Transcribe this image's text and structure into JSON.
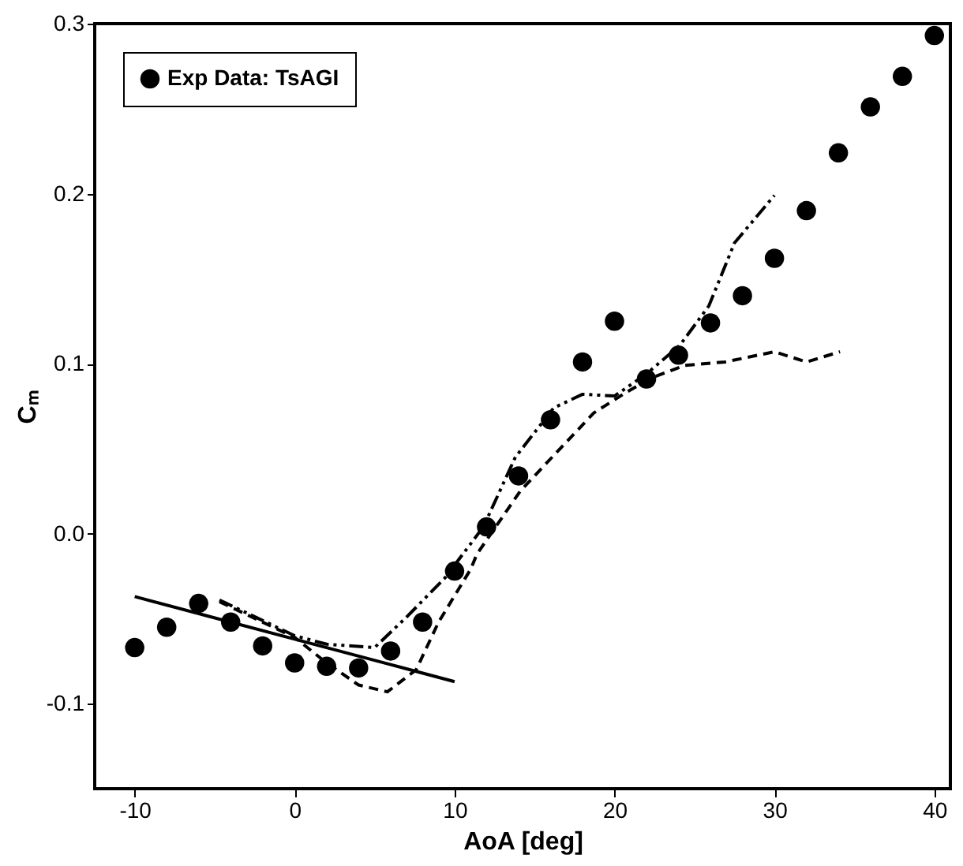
{
  "chart_data": {
    "type": "scatter",
    "xlabel": "AoA [deg]",
    "ylabel": "Cₘ",
    "xlim": [
      -12.5,
      41
    ],
    "ylim": [
      -0.15,
      0.3
    ],
    "xticks": [
      -10,
      0,
      10,
      20,
      30,
      40
    ],
    "yticks": [
      -0.1,
      {
        "value": 0,
        "label": "0.0"
      },
      0.1,
      0.2,
      0.3
    ],
    "grid": false,
    "legend": "top left",
    "series": [
      {
        "name": "Exp Data: TsAGI",
        "marker": "circle",
        "color": "#000000",
        "x": [
          -10,
          -8,
          -6,
          -4,
          -2,
          0,
          2,
          4,
          6,
          8,
          10,
          12,
          14,
          16,
          18,
          20,
          22,
          24,
          26,
          28,
          30,
          32,
          34,
          36,
          38,
          40
        ],
        "values": [
          -0.067,
          -0.055,
          -0.041,
          -0.052,
          -0.066,
          -0.076,
          -0.078,
          -0.079,
          -0.069,
          -0.052,
          -0.022,
          0.004,
          0.034,
          0.067,
          0.101,
          0.125,
          0.091,
          0.105,
          0.124,
          0.14,
          0.162,
          0.19,
          0.224,
          0.251,
          0.269,
          0.293
        ]
      },
      {
        "type": "line",
        "line_style": "solid",
        "color": "#000000",
        "x": [
          -10,
          0,
          6,
          10
        ],
        "values": [
          -0.037,
          -0.062,
          -0.077,
          -0.087
        ]
      },
      {
        "type": "line",
        "line_style": "dashed",
        "color": "#000000",
        "x": [
          -4.7,
          0,
          2,
          4,
          5.8,
          7.6,
          9,
          11,
          11.4,
          14.1,
          16.6,
          18.7,
          20.7,
          22.4,
          24.4,
          26.9,
          30,
          32,
          34.1
        ],
        "values": [
          -0.04,
          -0.061,
          -0.076,
          -0.089,
          -0.093,
          -0.08,
          -0.052,
          -0.021,
          -0.012,
          0.025,
          0.05,
          0.071,
          0.083,
          0.092,
          0.099,
          0.101,
          0.107,
          0.101,
          0.107
        ]
      },
      {
        "type": "line",
        "line_style": "dotted",
        "color": "#000000",
        "x": [
          -4.7,
          0,
          2,
          5,
          7,
          9.4,
          11.8,
          13.8,
          16.2,
          18,
          20,
          22,
          24.1,
          25.9,
          27.5,
          30
        ],
        "values": [
          -0.039,
          -0.06,
          -0.065,
          -0.067,
          -0.049,
          -0.026,
          0.004,
          0.045,
          0.074,
          0.082,
          0.081,
          0.094,
          0.111,
          0.134,
          0.171,
          0.199
        ]
      }
    ]
  }
}
